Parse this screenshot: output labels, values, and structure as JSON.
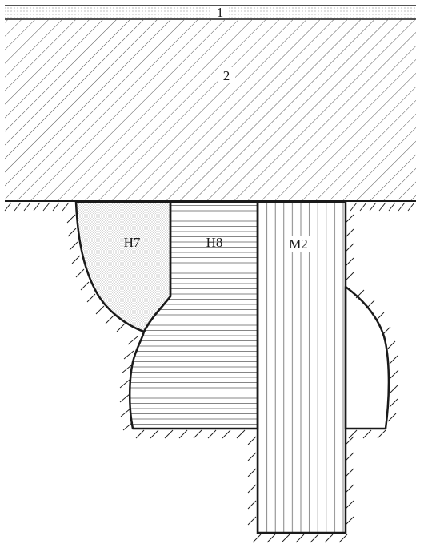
{
  "figure": {
    "labels": {
      "layer_1": "1",
      "layer_2": "2",
      "pit_h7": "H7",
      "pit_h8": "H8",
      "pit_m2": "M2"
    },
    "colors": {
      "line": "#1a1a1a",
      "hatch": "#555555",
      "stipple": "#777777",
      "background": "#ffffff"
    }
  }
}
